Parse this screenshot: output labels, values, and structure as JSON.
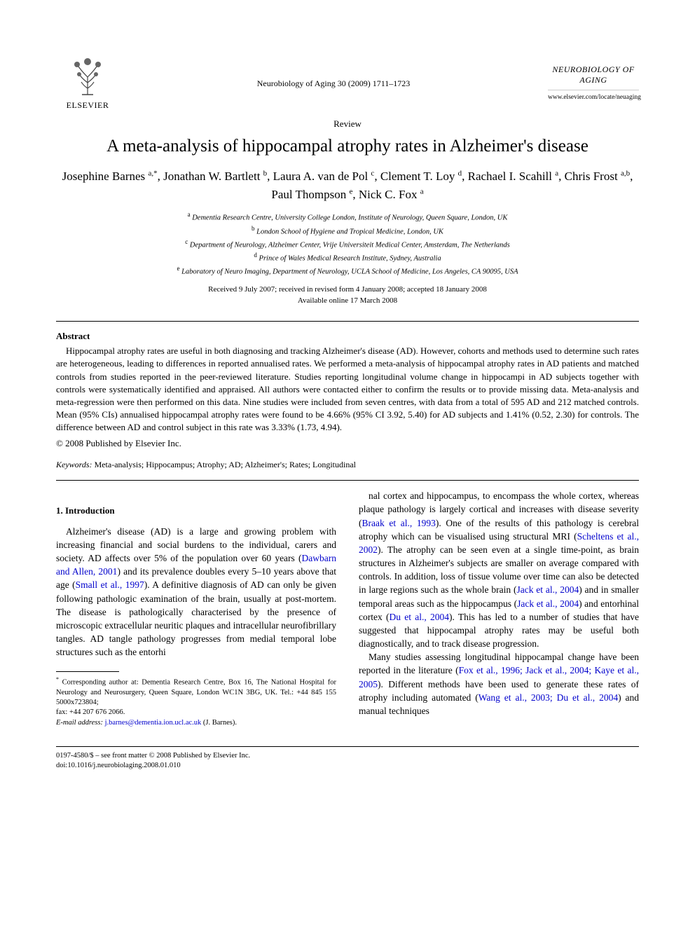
{
  "header": {
    "publisher_name": "ELSEVIER",
    "journal_ref": "Neurobiology of Aging 30 (2009) 1711–1723",
    "journal_title_box": "NEUROBIOLOGY OF AGING",
    "journal_url": "www.elsevier.com/locate/neuaging"
  },
  "article": {
    "type": "Review",
    "title": "A meta-analysis of hippocampal atrophy rates in Alzheimer's disease",
    "authors_html": "Josephine Barnes <sup>a,*</sup>, Jonathan W. Bartlett <sup>b</sup>, Laura A. van de Pol <sup>c</sup>, Clement T. Loy <sup>d</sup>, Rachael I. Scahill <sup>a</sup>, Chris Frost <sup>a,b</sup>, Paul Thompson <sup>e</sup>, Nick C. Fox <sup>a</sup>",
    "affiliations": [
      "a Dementia Research Centre, University College London, Institute of Neurology, Queen Square, London, UK",
      "b London School of Hygiene and Tropical Medicine, London, UK",
      "c Department of Neurology, Alzheimer Center, Vrije Universiteit Medical Center, Amsterdam, The Netherlands",
      "d Prince of Wales Medical Research Institute, Sydney, Australia",
      "e Laboratory of Neuro Imaging, Department of Neurology, UCLA School of Medicine, Los Angeles, CA 90095, USA"
    ],
    "received": "Received 9 July 2007; received in revised form 4 January 2008; accepted 18 January 2008",
    "available": "Available online 17 March 2008"
  },
  "abstract": {
    "heading": "Abstract",
    "text": "Hippocampal atrophy rates are useful in both diagnosing and tracking Alzheimer's disease (AD). However, cohorts and methods used to determine such rates are heterogeneous, leading to differences in reported annualised rates. We performed a meta-analysis of hippocampal atrophy rates in AD patients and matched controls from studies reported in the peer-reviewed literature. Studies reporting longitudinal volume change in hippocampi in AD subjects together with controls were systematically identified and appraised. All authors were contacted either to confirm the results or to provide missing data. Meta-analysis and meta-regression were then performed on this data. Nine studies were included from seven centres, with data from a total of 595 AD and 212 matched controls. Mean (95% CIs) annualised hippocampal atrophy rates were found to be 4.66% (95% CI 3.92, 5.40) for AD subjects and 1.41% (0.52, 2.30) for controls. The difference between AD and control subject in this rate was 3.33% (1.73, 4.94).",
    "copyright": "© 2008 Published by Elsevier Inc."
  },
  "keywords": {
    "label": "Keywords:",
    "text": " Meta-analysis; Hippocampus; Atrophy; AD; Alzheimer's; Rates; Longitudinal"
  },
  "body": {
    "section_heading": "1.  Introduction",
    "para1_a": "Alzheimer's disease (AD) is a large and growing problem with increasing financial and social burdens to the individual, carers and society. AD affects over 5% of the population over 60 years (",
    "ref1": "Dawbarn and Allen, 2001",
    "para1_b": ") and its prevalence doubles every 5–10 years above that age (",
    "ref2": "Small et al., 1997",
    "para1_c": "). A definitive diagnosis of AD can only be given following pathologic examination of the brain, usually at post-mortem. The disease is pathologically characterised by the presence of microscopic extracellular neuritic plaques and intracellular neurofibrillary tangles. AD tangle pathology progresses from medial temporal lobe structures such as the entorhi",
    "para1_d": "nal cortex and hippocampus, to encompass the whole cortex, whereas plaque pathology is largely cortical and increases with disease severity (",
    "ref3": "Braak et al., 1993",
    "para1_e": "). One of the results of this pathology is cerebral atrophy which can be visualised using structural MRI (",
    "ref4": "Scheltens et al., 2002",
    "para1_f": "). The atrophy can be seen even at a single time-point, as brain structures in Alzheimer's subjects are smaller on average compared with controls. In addition, loss of tissue volume over time can also be detected in large regions such as the whole brain (",
    "ref5": "Jack et al., 2004",
    "para1_g": ") and in smaller temporal areas such as the hippocampus (",
    "ref6": "Jack et al., 2004",
    "para1_h": ") and entorhinal cortex (",
    "ref7": "Du et al., 2004",
    "para1_i": "). This has led to a number of studies that have suggested that hippocampal atrophy rates may be useful both diagnostically, and to track disease progression.",
    "para2_a": "Many studies assessing longitudinal hippocampal change have been reported in the literature (",
    "ref8": "Fox et al., 1996; Jack et al., 2004; Kaye et al., 2005",
    "para2_b": "). Different methods have been used to generate these rates of atrophy including automated (",
    "ref9": "Wang et al., 2003; Du et al., 2004",
    "para2_c": ") and manual techniques"
  },
  "footnotes": {
    "corr": "* Corresponding author at: Dementia Research Centre, Box 16, The National Hospital for Neurology and Neurosurgery, Queen Square, London WC1N 3BG, UK. Tel.: +44 845 155 5000x723804;",
    "fax": "fax: +44 207 676 2066.",
    "email_label": "E-mail address:",
    "email": "j.barnes@dementia.ion.ucl.ac.uk",
    "email_suffix": " (J. Barnes)."
  },
  "footer": {
    "line1": "0197-4580/$ – see front matter © 2008 Published by Elsevier Inc.",
    "line2": "doi:10.1016/j.neurobiolaging.2008.01.010"
  },
  "colors": {
    "text": "#000000",
    "link": "#0000cc",
    "background": "#ffffff",
    "logo_orange": "#ee7f00"
  }
}
